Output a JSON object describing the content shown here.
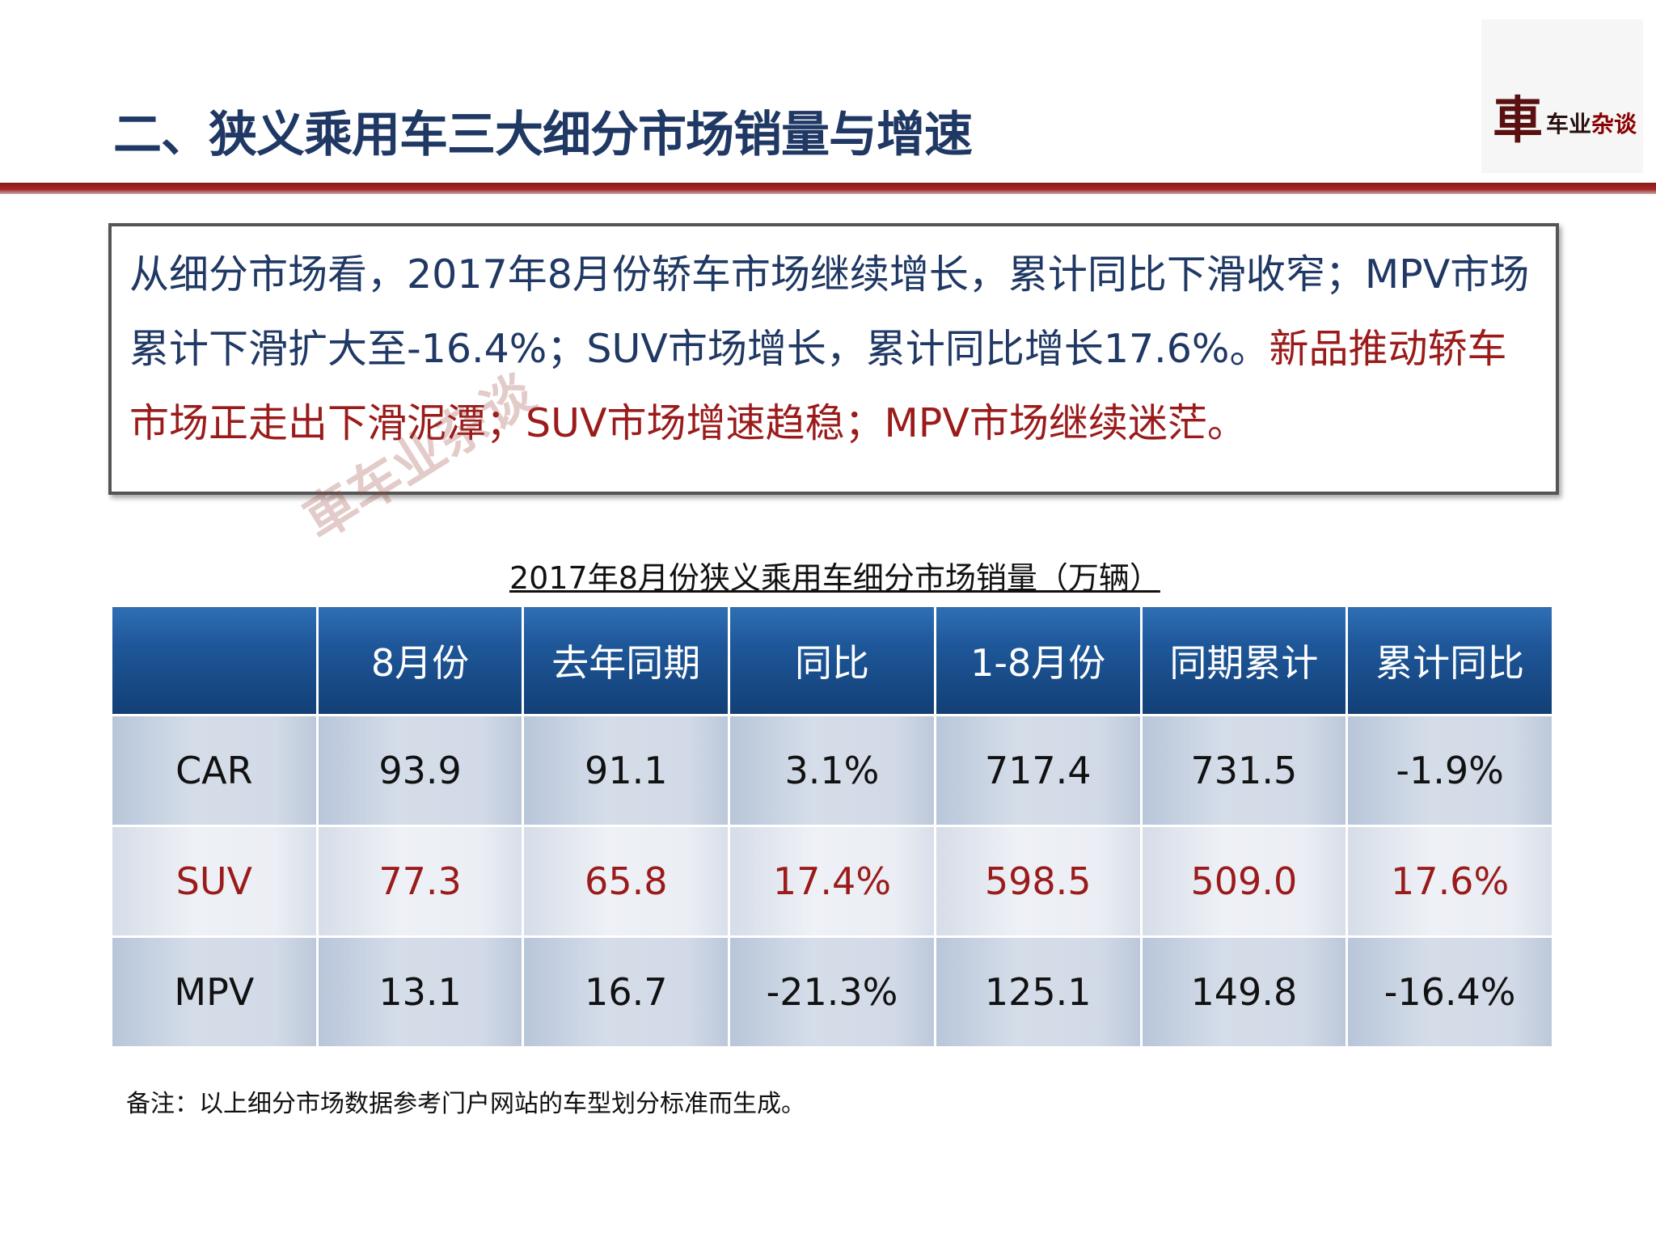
{
  "title": "二、狭义乘用车三大细分市场销量与增速",
  "logo": {
    "glyph": "車",
    "text_a": "车业",
    "text_b": "杂谈"
  },
  "watermark": "車车业杂谈",
  "summary": {
    "blue_text": "从细分市场看，2017年8月份轿车市场继续增长，累计同比下滑收窄；MPV市场累计下滑扩大至-16.4%；SUV市场增长，累计同比增长17.6%。",
    "red_text": "新品推动轿车市场正走出下滑泥潭；SUV市场增速趋稳；MPV市场继续迷茫。"
  },
  "table": {
    "caption": "2017年8月份狭义乘用车细分市场销量（万辆）",
    "headers": [
      "",
      "8月份",
      "去年同期",
      "同比",
      "1-8月份",
      "同期累计",
      "累计同比"
    ],
    "rows": [
      [
        "CAR",
        "93.9",
        "91.1",
        "3.1%",
        "717.4",
        "731.5",
        "-1.9%"
      ],
      [
        "SUV",
        "77.3",
        "65.8",
        "17.4%",
        "598.5",
        "509.0",
        "17.6%"
      ],
      [
        "MPV",
        "13.1",
        "16.7",
        "-21.3%",
        "125.1",
        "149.8",
        "-16.4%"
      ]
    ]
  },
  "footnote": "备注：以上细分市场数据参考门户网站的车型划分标准而生成。",
  "colors": {
    "title": "#1f3864",
    "accent_red": "#9b1b1b",
    "header_blue": "#1e5799",
    "rule": "#a52a2a"
  }
}
